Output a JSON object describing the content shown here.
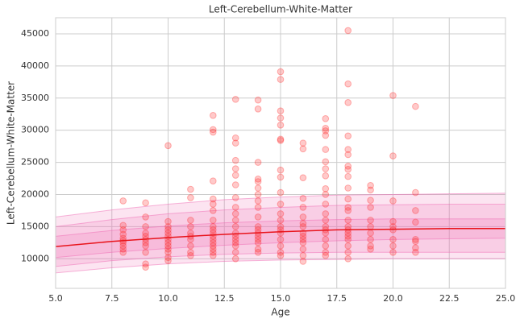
{
  "chart_data": {
    "type": "scatter",
    "title": "Left-Cerebellum-White-Matter",
    "xlabel": "Age",
    "ylabel": "Left-Cerebellum-White-Matter",
    "xlim": [
      5,
      25
    ],
    "ylim": [
      5400,
      47500
    ],
    "xticks": [
      {
        "value": 5,
        "label": "5.0"
      },
      {
        "value": 7.5,
        "label": "7.5"
      },
      {
        "value": 10,
        "label": "10.0"
      },
      {
        "value": 12.5,
        "label": "12.5"
      },
      {
        "value": 15,
        "label": "15.0"
      },
      {
        "value": 17.5,
        "label": "17.5"
      },
      {
        "value": 20,
        "label": "20.0"
      },
      {
        "value": 22.5,
        "label": "22.5"
      },
      {
        "value": 25,
        "label": "25.0"
      }
    ],
    "yticks": [
      10000,
      15000,
      20000,
      25000,
      30000,
      35000,
      40000,
      45000
    ],
    "grid": true,
    "points": {
      "color": "#ff2a2a",
      "x": [
        8,
        8,
        8,
        8,
        8,
        8,
        8,
        8,
        8,
        8,
        9,
        9,
        9,
        9,
        9,
        9,
        9,
        9,
        9,
        9,
        9,
        10,
        10,
        10,
        10,
        10,
        10,
        10,
        10,
        10,
        10,
        10,
        10,
        10,
        11,
        11,
        11,
        11,
        11,
        11,
        11,
        11,
        11,
        11,
        12,
        12,
        12,
        12,
        12,
        12,
        12,
        12,
        12,
        12,
        12,
        12,
        12,
        12,
        12,
        12,
        12,
        12,
        13,
        13,
        13,
        13,
        13,
        13,
        13,
        13,
        13,
        13,
        13,
        13,
        13,
        13,
        13,
        13,
        13,
        13,
        13,
        14,
        14,
        14,
        14,
        14,
        14,
        14,
        14,
        14,
        14,
        14,
        14,
        14,
        14,
        14,
        14,
        14,
        14,
        15,
        15,
        15,
        15,
        15,
        15,
        15,
        15,
        15,
        15,
        15,
        15,
        15,
        15,
        15,
        15,
        15,
        15,
        15,
        15,
        16,
        16,
        16,
        16,
        16,
        16,
        16,
        16,
        16,
        16,
        16,
        16,
        16,
        16,
        16,
        17,
        17,
        17,
        17,
        17,
        17,
        17,
        17,
        17,
        17,
        17,
        17,
        17,
        17,
        17,
        17,
        17,
        17,
        17,
        17,
        18,
        18,
        18,
        18,
        18,
        18,
        18,
        18,
        18,
        18,
        18,
        18,
        18,
        18,
        18,
        18,
        18,
        18,
        18,
        18,
        18,
        18,
        19,
        19,
        19,
        19,
        19,
        19,
        19,
        19,
        19,
        19,
        20,
        20,
        20,
        20,
        20,
        20,
        20,
        20,
        20,
        21,
        21,
        21,
        21,
        21,
        21,
        21,
        21
      ],
      "values": [
        19000,
        15200,
        14500,
        13800,
        13200,
        12800,
        12500,
        12000,
        11500,
        11000,
        18700,
        16500,
        15000,
        14000,
        13500,
        13000,
        12500,
        12000,
        11000,
        9200,
        8700,
        27600,
        15800,
        15000,
        14500,
        14000,
        13500,
        13000,
        12500,
        12000,
        11500,
        11000,
        10200,
        9700,
        20800,
        19500,
        16000,
        15000,
        14000,
        13500,
        13000,
        12000,
        11000,
        10500,
        32300,
        30100,
        29700,
        22100,
        19300,
        18500,
        17500,
        16000,
        15000,
        14500,
        14000,
        13500,
        13000,
        12500,
        12000,
        11500,
        11000,
        10500,
        34800,
        28800,
        28000,
        25300,
        24000,
        23000,
        21500,
        19500,
        18000,
        17000,
        16000,
        15000,
        14000,
        13500,
        13000,
        12500,
        12000,
        11000,
        10000,
        34700,
        33300,
        25000,
        22400,
        22000,
        21000,
        20000,
        19000,
        18000,
        16500,
        15000,
        14500,
        14000,
        13500,
        13000,
        12500,
        11500,
        11000,
        39100,
        37900,
        33000,
        31900,
        30800,
        28600,
        28400,
        23800,
        22700,
        20300,
        18500,
        17000,
        16000,
        15000,
        14500,
        14000,
        13000,
        12000,
        11000,
        10500,
        28000,
        27100,
        22600,
        19400,
        18000,
        16500,
        15500,
        15000,
        14000,
        13500,
        13000,
        12500,
        11500,
        10500,
        9600,
        31800,
        30300,
        29900,
        29200,
        27000,
        25100,
        24000,
        22900,
        20900,
        20000,
        18500,
        17000,
        16000,
        15000,
        14500,
        14000,
        13000,
        12000,
        11000,
        10500,
        45500,
        37200,
        34300,
        29100,
        27000,
        26200,
        24400,
        23900,
        22800,
        21000,
        19300,
        18000,
        17500,
        16000,
        15000,
        14500,
        14000,
        13500,
        13000,
        12000,
        11000,
        10000,
        21400,
        20700,
        19100,
        18000,
        16000,
        15000,
        14000,
        13000,
        12000,
        11500,
        35400,
        26000,
        19000,
        15800,
        15000,
        14500,
        13000,
        12000,
        11000,
        33700,
        20300,
        17500,
        15700,
        13000,
        12700,
        11700,
        11000
      ]
    },
    "curve_x": [
      5,
      7.5,
      10,
      12.5,
      15,
      17.5,
      20,
      22.5,
      25
    ],
    "mean": {
      "color": "#e8141c",
      "values": [
        11900,
        12700,
        13300,
        13800,
        14200,
        14500,
        14600,
        14700,
        14700
      ]
    },
    "band_color": "#f06ab4",
    "bands": [
      {
        "upper": [
          16500,
          17600,
          18500,
          19200,
          19600,
          19900,
          20000,
          20100,
          20200
        ],
        "lower": [
          7800,
          8600,
          9200,
          9600,
          9800,
          9900,
          10000,
          10000,
          10000
        ]
      },
      {
        "upper": [
          15000,
          16100,
          17000,
          17600,
          18000,
          18300,
          18400,
          18500,
          18500
        ],
        "lower": [
          8800,
          9700,
          10300,
          10700,
          10900,
          11000,
          11000,
          11000,
          11000
        ]
      },
      {
        "upper": [
          13500,
          14400,
          15100,
          15600,
          15900,
          16100,
          16200,
          16200,
          16200
        ],
        "lower": [
          10200,
          11000,
          11600,
          12100,
          12500,
          12800,
          13000,
          13100,
          13200
        ]
      }
    ]
  }
}
